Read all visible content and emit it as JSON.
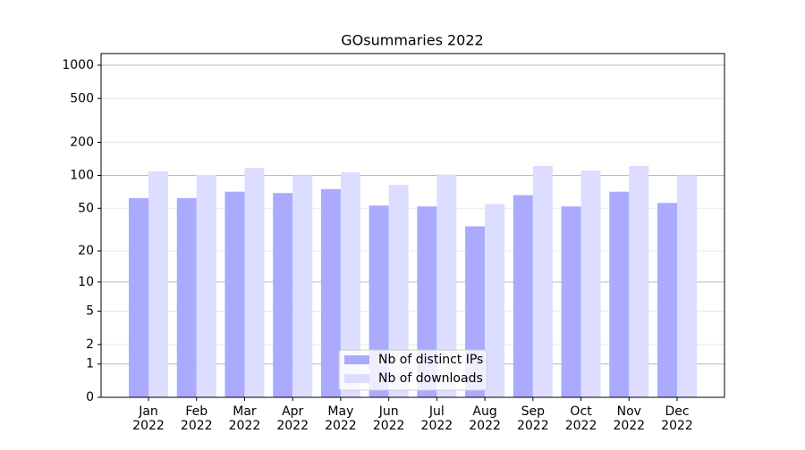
{
  "chart_data": {
    "type": "bar",
    "title": "GOsummaries 2022",
    "categories": [
      "Jan 2022",
      "Feb 2022",
      "Mar 2022",
      "Apr 2022",
      "May 2022",
      "Jun 2022",
      "Jul 2022",
      "Aug 2022",
      "Sep 2022",
      "Oct 2022",
      "Nov 2022",
      "Dec 2022"
    ],
    "series": [
      {
        "name": "Nb of distinct IPs",
        "color": "#aaaaff",
        "values": [
          62,
          62,
          71,
          69,
          75,
          53,
          52,
          34,
          66,
          52,
          71,
          56
        ]
      },
      {
        "name": "Nb of downloads",
        "color": "#ddddff",
        "values": [
          109,
          101,
          117,
          100,
          107,
          82,
          102,
          55,
          122,
          111,
          122,
          100
        ]
      }
    ],
    "yscale": "log1p",
    "ylim": [
      0,
      1273
    ],
    "yticks": [
      0,
      1,
      2,
      5,
      10,
      20,
      50,
      100,
      200,
      500,
      1000
    ],
    "grid": true,
    "legend": "lower center"
  }
}
